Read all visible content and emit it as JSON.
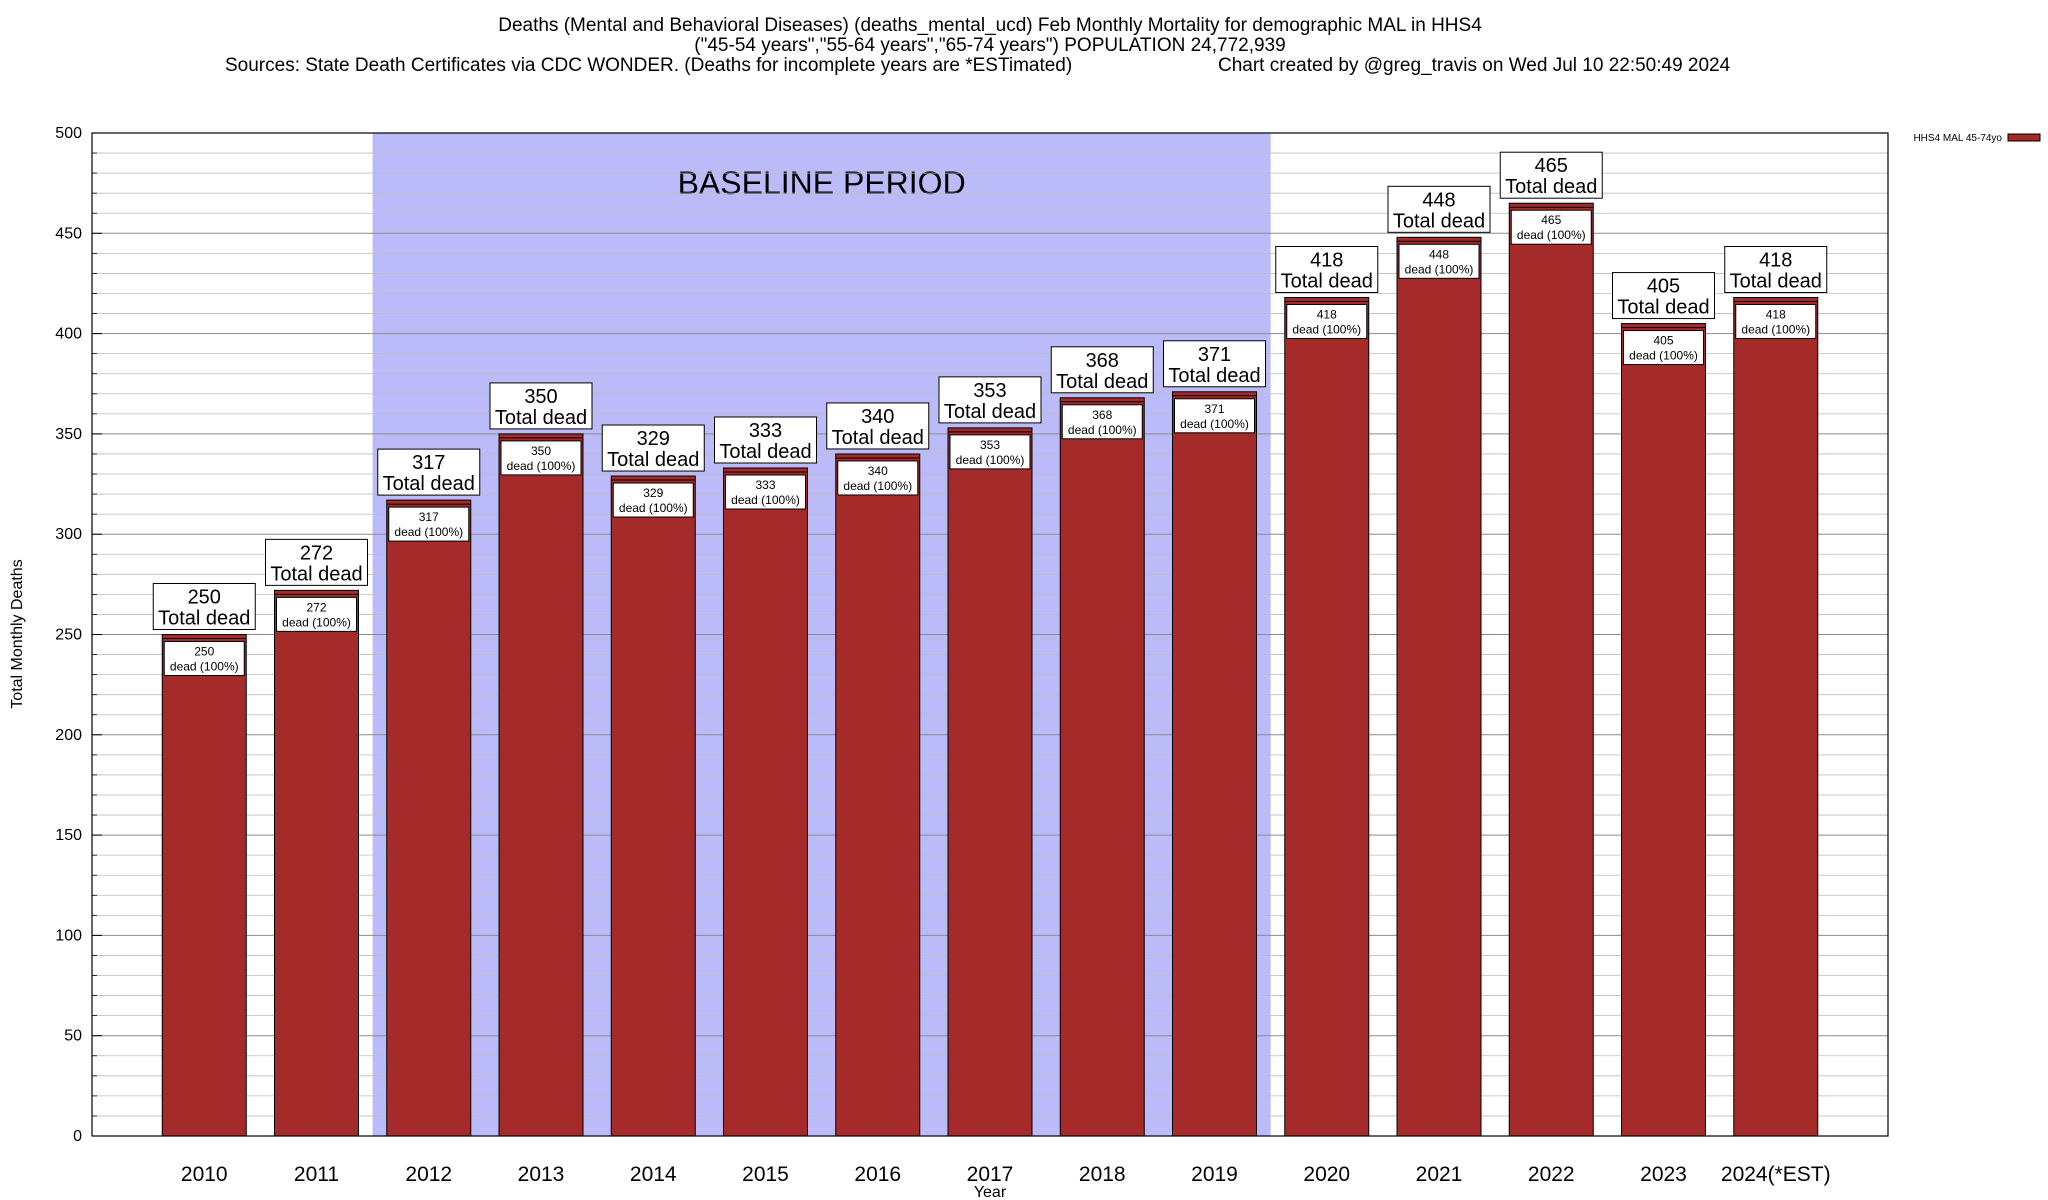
{
  "header": {
    "title_line1": "Deaths (Mental and Behavioral Diseases) (deaths_mental_ucd) Feb Monthly Mortality for demographic MAL in HHS4",
    "title_line2": "(\"45-54 years\",\"55-64 years\",\"65-74 years\") POPULATION 24,772,939",
    "title_line3_left": "Sources: State Death Certificates via CDC WONDER. (Deaths for incomplete years are *ESTimated)",
    "title_line3_right": "Chart created by @greg_travis on Wed Jul 10 22:50:49 2024"
  },
  "chart_data": {
    "type": "bar",
    "categories": [
      "2010",
      "2011",
      "2012",
      "2013",
      "2014",
      "2015",
      "2016",
      "2017",
      "2018",
      "2019",
      "2020",
      "2021",
      "2022",
      "2023",
      "2024(*EST)"
    ],
    "series": [
      {
        "name": "HHS4 MAL 45-74yo",
        "values": [
          250,
          272,
          317,
          350,
          329,
          333,
          340,
          353,
          368,
          371,
          418,
          448,
          465,
          405,
          418
        ],
        "color": "#a52a2a"
      }
    ],
    "xlabel": "Year",
    "ylabel": "Total Monthly Deaths",
    "ylim": [
      0,
      500
    ],
    "yticks": [
      0,
      50,
      100,
      150,
      200,
      250,
      300,
      350,
      400,
      450,
      500
    ],
    "grid": true,
    "legend_position": "top-right",
    "shaded_region": {
      "label": "BASELINE PERIOD",
      "from": "2012",
      "to": "2019",
      "color": "#bbbbfa"
    },
    "top_label_suffix": "Total dead",
    "inner_label_suffix": "dead (100%)"
  }
}
